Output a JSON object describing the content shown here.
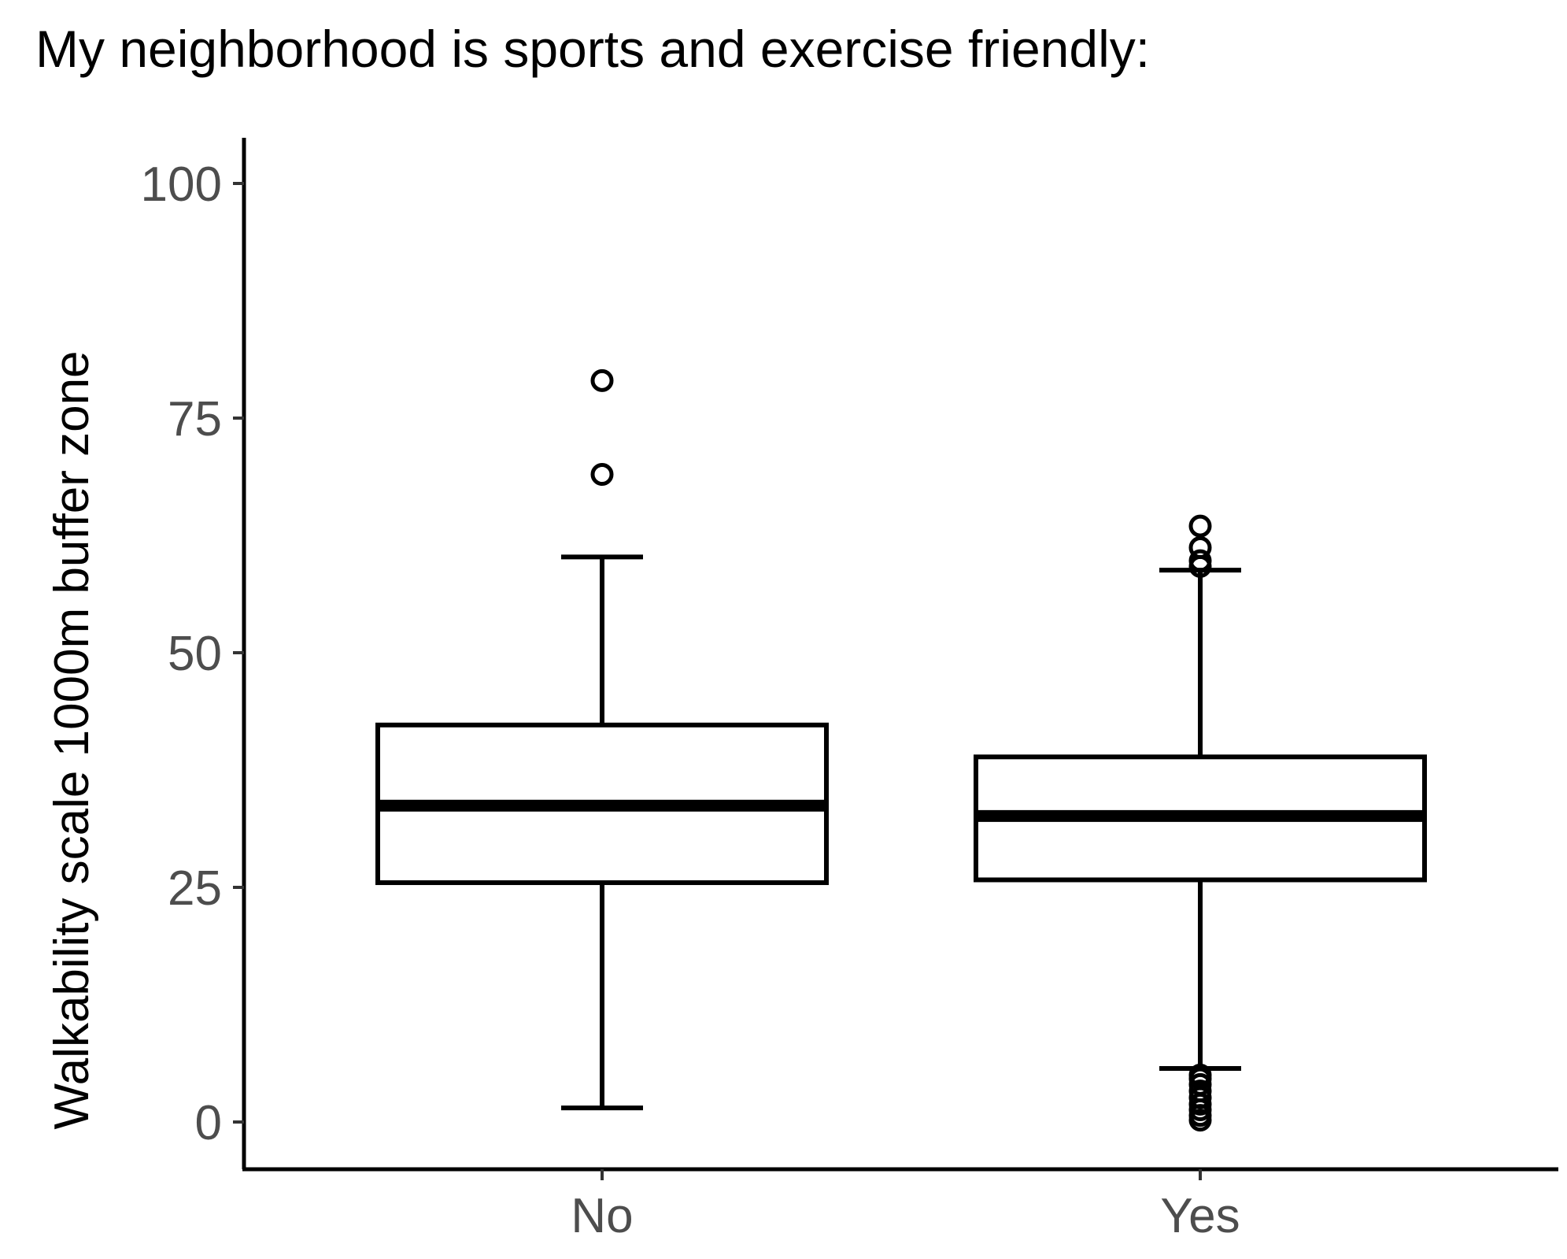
{
  "chart_data": {
    "type": "boxplot",
    "title": "My neighborhood is sports and exercise friendly:",
    "xlabel": "",
    "ylabel": "Walkability scale 1000m buffer zone",
    "ylim": [
      -5,
      105
    ],
    "yticks": [
      0,
      25,
      50,
      75,
      100
    ],
    "grid": false,
    "categories": [
      "No",
      "Yes"
    ],
    "boxes": [
      {
        "category": "No",
        "whisker_low": 1.5,
        "q1": 25.5,
        "median": 33.7,
        "q3": 42.3,
        "whisker_high": 60.2,
        "outliers": [
          69,
          79
        ]
      },
      {
        "category": "Yes",
        "whisker_low": 5.7,
        "q1": 25.8,
        "median": 32.6,
        "q3": 38.9,
        "whisker_high": 58.8,
        "outliers": [
          59.2,
          59.8,
          61.2,
          63.5,
          0.2,
          0.7,
          1.3,
          1.9,
          2.6,
          3.3,
          4.0,
          4.6,
          5.0
        ]
      }
    ],
    "colors": {
      "stroke": "#000000",
      "fill": "#ffffff",
      "tick_label": "#4d4d4d",
      "background": "#ffffff"
    }
  }
}
